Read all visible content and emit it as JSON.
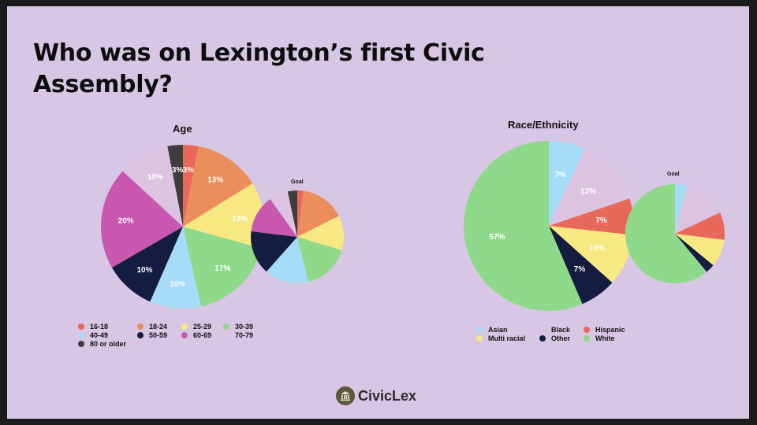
{
  "title": "Who was on Lexington’s first Civic Assembly?",
  "logo": {
    "text": "CivicLex"
  },
  "chart_data": [
    {
      "type": "pie",
      "title": "Age",
      "series": [
        {
          "values": [
            3,
            13,
            13,
            17,
            10,
            10,
            20,
            10,
            3
          ],
          "labels": [
            "3%",
            "13%",
            "13%",
            "17%",
            "10%",
            "10%",
            "20%",
            "10%",
            "3%"
          ]
        },
        {
          "name": "Goal",
          "values": [
            2,
            14,
            11,
            15,
            14,
            14,
            12,
            6,
            3
          ]
        }
      ],
      "categories": [
        "16-18",
        "18-24",
        "25-29",
        "30-39",
        "40-49",
        "50-59",
        "60-69",
        "70-79",
        "80 or older"
      ],
      "colors": [
        "#e8685a",
        "#eb8e5c",
        "#f7e882",
        "#8fda8a",
        "#a6dcf7",
        "#141c40",
        "#c957b0",
        "#dcc3e0",
        "#3d3d3d"
      ],
      "legend": "bottom"
    },
    {
      "type": "pie",
      "title": "Race/Ethnicity",
      "series": [
        {
          "values": [
            7,
            13,
            7,
            10,
            7,
            57
          ],
          "labels": [
            "7%",
            "13%",
            "7%",
            "10%",
            "7%",
            "57%"
          ]
        },
        {
          "name": "Goal",
          "values": [
            4,
            14,
            9,
            9,
            3,
            61
          ]
        }
      ],
      "categories": [
        "Asian",
        "Black",
        "Hispanic",
        "Multi racial",
        "Other",
        "White"
      ],
      "colors": [
        "#a6dcf7",
        "#dcc3e0",
        "#e8685a",
        "#f7e882",
        "#141c40",
        "#8fda8a"
      ],
      "legend": "bottom"
    }
  ]
}
